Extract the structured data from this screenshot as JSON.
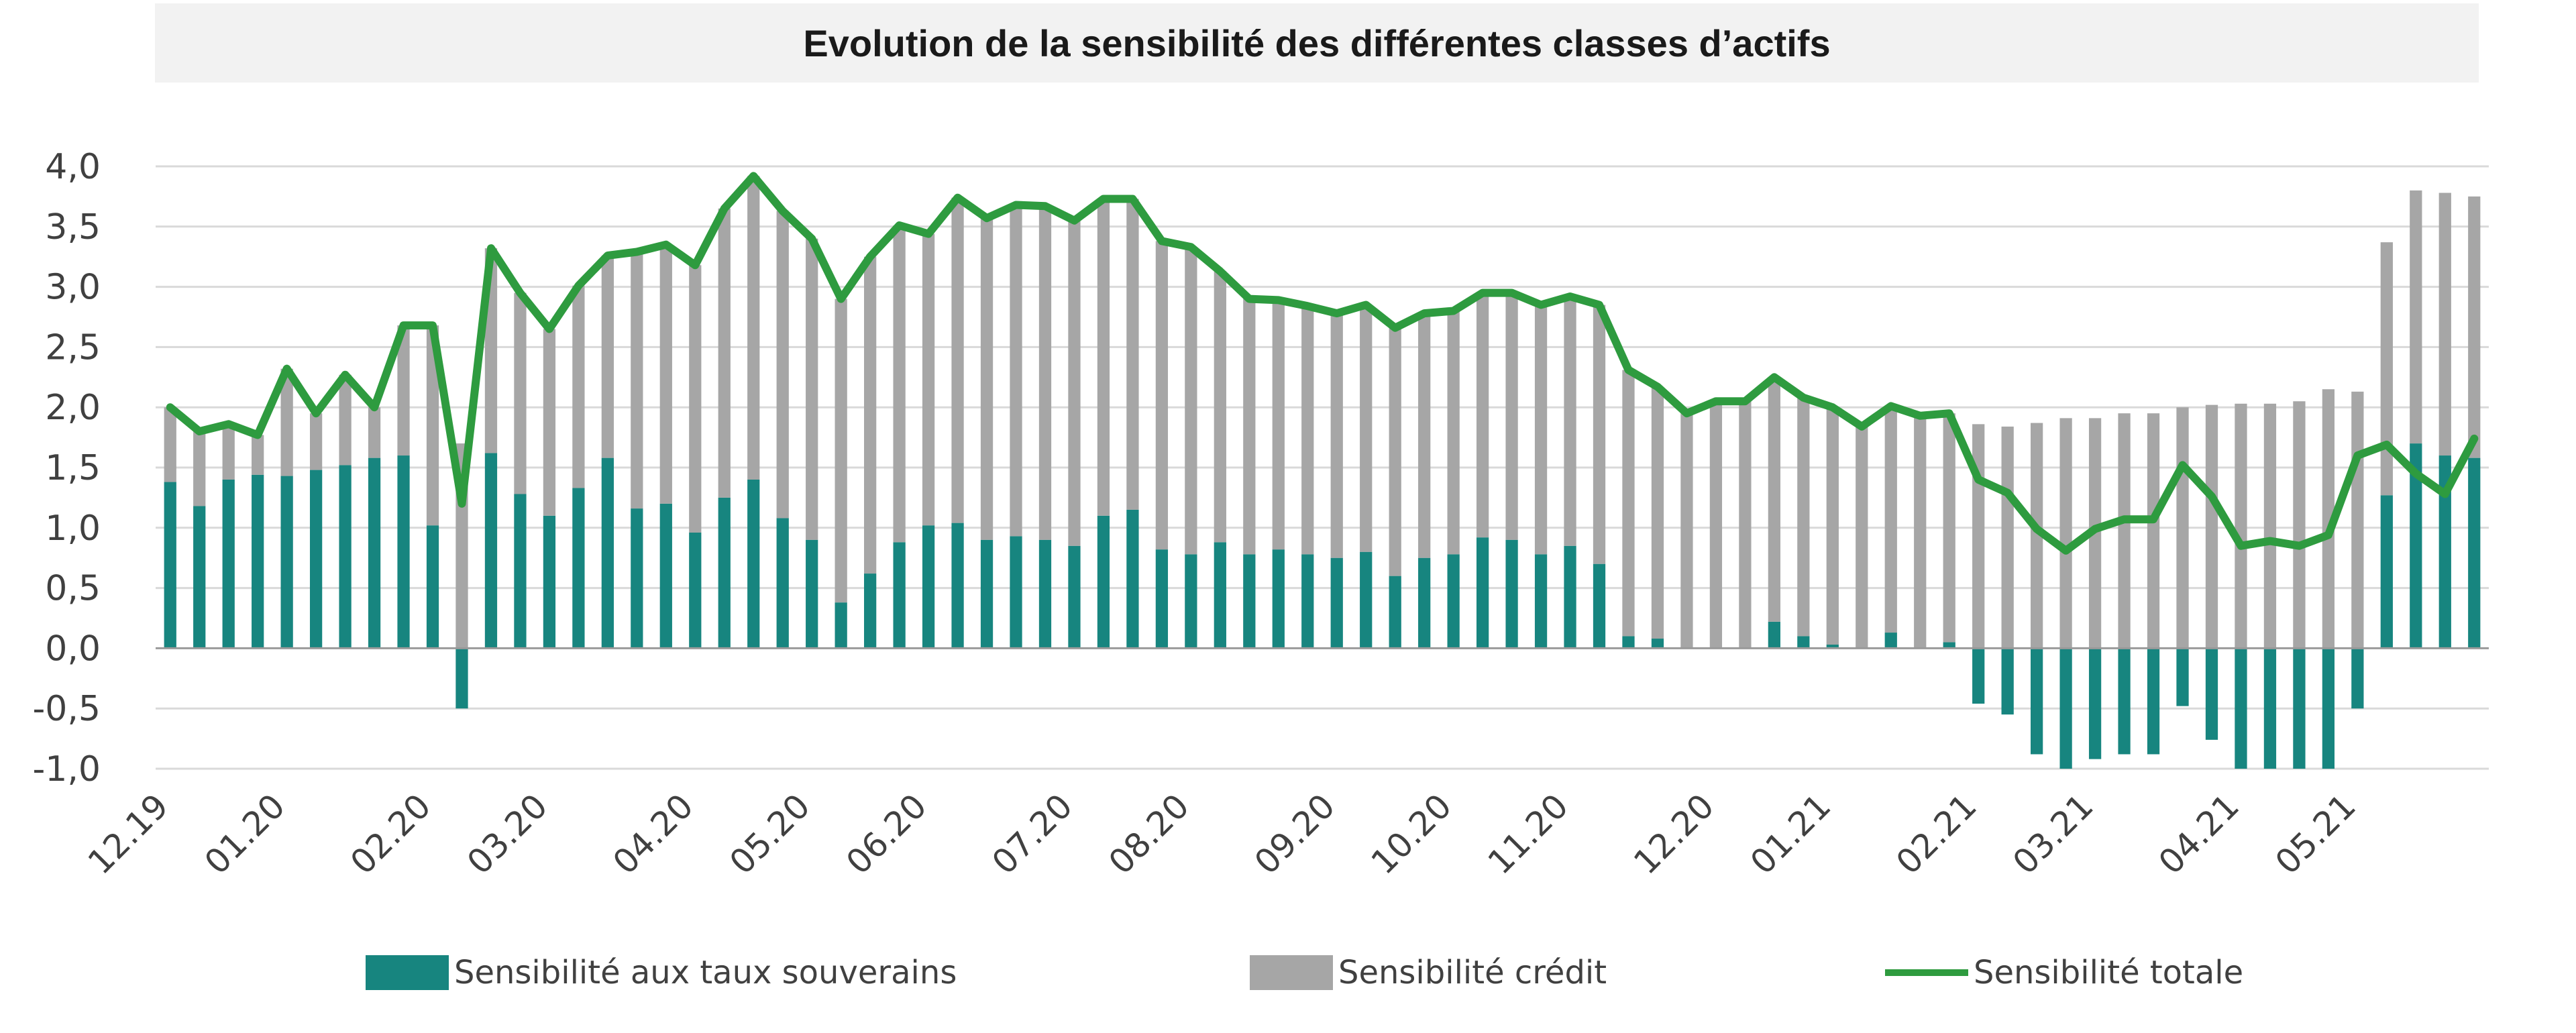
{
  "chart_data": {
    "type": "bar",
    "title": "Evolution de la sensibilité des différentes classes d’actifs",
    "xlabel": "",
    "ylabel": "",
    "ylim": [
      -1.0,
      4.0
    ],
    "y_ticks": [
      "-1,0",
      "-0,5",
      "0,0",
      "0,5",
      "1,0",
      "1,5",
      "2,0",
      "2,5",
      "3,0",
      "3,5",
      "4,0"
    ],
    "grid": true,
    "x_tick_labels": [
      {
        "index": 0,
        "label": "12.19"
      },
      {
        "index": 4,
        "label": "01.20"
      },
      {
        "index": 9,
        "label": "02.20"
      },
      {
        "index": 13,
        "label": "03.20"
      },
      {
        "index": 18,
        "label": "04.20"
      },
      {
        "index": 22,
        "label": "05.20"
      },
      {
        "index": 26,
        "label": "06.20"
      },
      {
        "index": 31,
        "label": "07.20"
      },
      {
        "index": 35,
        "label": "08.20"
      },
      {
        "index": 40,
        "label": "09.20"
      },
      {
        "index": 44,
        "label": "10.20"
      },
      {
        "index": 48,
        "label": "11.20"
      },
      {
        "index": 53,
        "label": "12.20"
      },
      {
        "index": 57,
        "label": "01.21"
      },
      {
        "index": 62,
        "label": "02.21"
      },
      {
        "index": 66,
        "label": "03.21"
      },
      {
        "index": 71,
        "label": "04.21"
      },
      {
        "index": 75,
        "label": "05.21"
      }
    ],
    "series": [
      {
        "name": "Sensibilité aux taux souverains",
        "kind": "bar",
        "color": "#17857f",
        "values": [
          1.38,
          1.18,
          1.4,
          1.44,
          1.43,
          1.48,
          1.52,
          1.58,
          1.6,
          1.02,
          -0.5,
          1.62,
          1.28,
          1.1,
          1.33,
          1.58,
          1.16,
          1.2,
          0.96,
          1.25,
          1.4,
          1.08,
          0.9,
          0.38,
          0.62,
          0.88,
          1.02,
          1.04,
          0.9,
          0.93,
          0.9,
          0.85,
          1.1,
          1.15,
          0.82,
          0.78,
          0.88,
          0.78,
          0.82,
          0.78,
          0.75,
          0.8,
          0.6,
          0.75,
          0.78,
          0.92,
          0.9,
          0.78,
          0.85,
          0.7,
          0.1,
          0.08,
          0.0,
          0.0,
          0.0,
          0.22,
          0.1,
          0.03,
          0.0,
          0.13,
          0.0,
          0.05,
          -0.46,
          -0.55,
          -0.88,
          -1.0,
          -0.92,
          -0.88,
          -0.88,
          -0.48,
          -0.76,
          -1.0,
          -1.0,
          -1.0,
          -1.0,
          -0.5,
          1.27,
          1.7,
          1.6,
          1.58
        ]
      },
      {
        "name": "Sensibilité crédit",
        "kind": "bar",
        "color": "#a6a6a6",
        "values": [
          0.62,
          0.62,
          0.46,
          0.33,
          0.89,
          0.47,
          0.75,
          0.42,
          1.08,
          1.66,
          1.7,
          1.7,
          1.67,
          1.55,
          1.68,
          1.68,
          2.13,
          2.15,
          2.22,
          2.4,
          2.52,
          2.55,
          2.5,
          2.52,
          2.63,
          2.63,
          2.42,
          2.7,
          2.67,
          2.75,
          2.77,
          2.7,
          2.63,
          2.58,
          2.56,
          2.55,
          2.25,
          2.12,
          2.07,
          2.06,
          2.03,
          2.05,
          2.06,
          2.03,
          2.02,
          2.03,
          2.05,
          2.07,
          2.07,
          2.15,
          2.21,
          2.09,
          1.95,
          2.05,
          2.05,
          2.03,
          1.98,
          1.97,
          1.84,
          1.88,
          1.93,
          1.9,
          1.86,
          1.84,
          1.87,
          1.91,
          1.91,
          1.95,
          1.95,
          2.0,
          2.02,
          2.03,
          2.03,
          2.05,
          2.15,
          2.13,
          2.1,
          2.1,
          2.18,
          2.17
        ]
      },
      {
        "name": "Sensibilité totale",
        "kind": "line",
        "color": "#2e9b3f",
        "values": [
          2.0,
          1.8,
          1.86,
          1.77,
          2.32,
          1.95,
          2.27,
          2.0,
          2.68,
          2.68,
          1.2,
          3.32,
          2.95,
          2.65,
          3.01,
          3.26,
          3.29,
          3.35,
          3.18,
          3.65,
          3.92,
          3.63,
          3.4,
          2.9,
          3.25,
          3.51,
          3.44,
          3.74,
          3.57,
          3.68,
          3.67,
          3.55,
          3.73,
          3.73,
          3.38,
          3.33,
          3.13,
          2.9,
          2.89,
          2.84,
          2.78,
          2.85,
          2.66,
          2.78,
          2.8,
          2.95,
          2.95,
          2.85,
          2.92,
          2.85,
          2.31,
          2.17,
          1.95,
          2.05,
          2.05,
          2.25,
          2.08,
          2.0,
          1.84,
          2.01,
          1.93,
          1.95,
          1.4,
          1.29,
          0.99,
          0.81,
          0.99,
          1.07,
          1.07,
          1.52,
          1.26,
          0.85,
          0.89,
          0.85,
          0.94,
          1.6,
          1.69,
          1.45,
          1.28,
          1.74
        ]
      }
    ],
    "legend_position": "bottom"
  }
}
